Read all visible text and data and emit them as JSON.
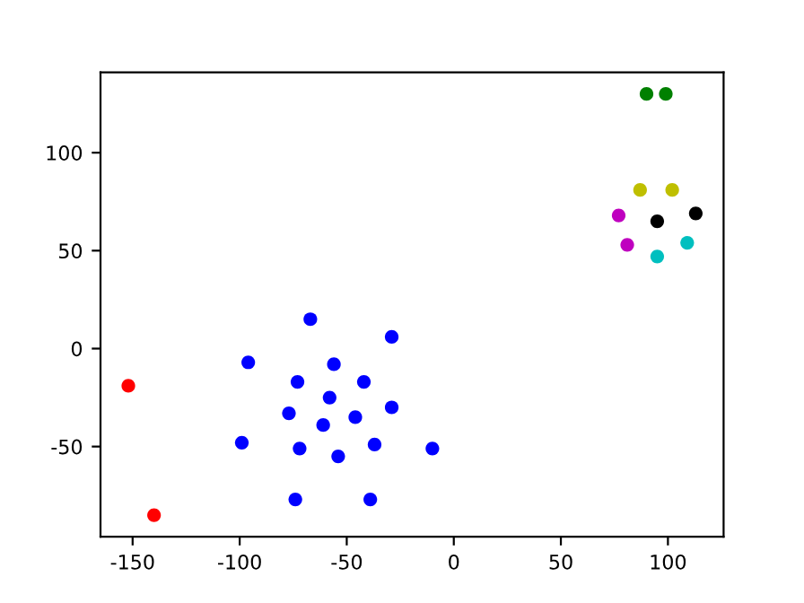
{
  "chart_data": {
    "type": "scatter",
    "xlim": [
      -165,
      126
    ],
    "ylim": [
      -96,
      141
    ],
    "xticks": [
      -150,
      -100,
      -50,
      0,
      50,
      100
    ],
    "yticks": [
      -50,
      0,
      50,
      100
    ],
    "grid": false,
    "legend": false,
    "marker": "circle",
    "series": [
      {
        "color": "#ff0000",
        "x": [
          -152,
          -140
        ],
        "values": [
          -19,
          -85
        ]
      },
      {
        "color": "#0000ff",
        "x": [
          -67,
          -29,
          -96,
          -56,
          -73,
          -42,
          -58,
          -77,
          -46,
          -29,
          -61,
          -99,
          -37,
          -72,
          -54,
          -10,
          -74,
          -39
        ],
        "values": [
          15,
          6,
          -7,
          -8,
          -17,
          -17,
          -25,
          -33,
          -35,
          -30,
          -39,
          -48,
          -49,
          -51,
          -55,
          -51,
          -77,
          -77
        ]
      },
      {
        "color": "#008000",
        "x": [
          90,
          99
        ],
        "values": [
          130,
          130
        ]
      },
      {
        "color": "#bfbf00",
        "x": [
          87,
          102
        ],
        "values": [
          81,
          81
        ]
      },
      {
        "color": "#bf00bf",
        "x": [
          77,
          81
        ],
        "values": [
          68,
          53
        ]
      },
      {
        "color": "#000000",
        "x": [
          95,
          113
        ],
        "values": [
          65,
          69
        ]
      },
      {
        "color": "#00bfbf",
        "x": [
          95,
          109
        ],
        "values": [
          47,
          54
        ]
      }
    ]
  }
}
